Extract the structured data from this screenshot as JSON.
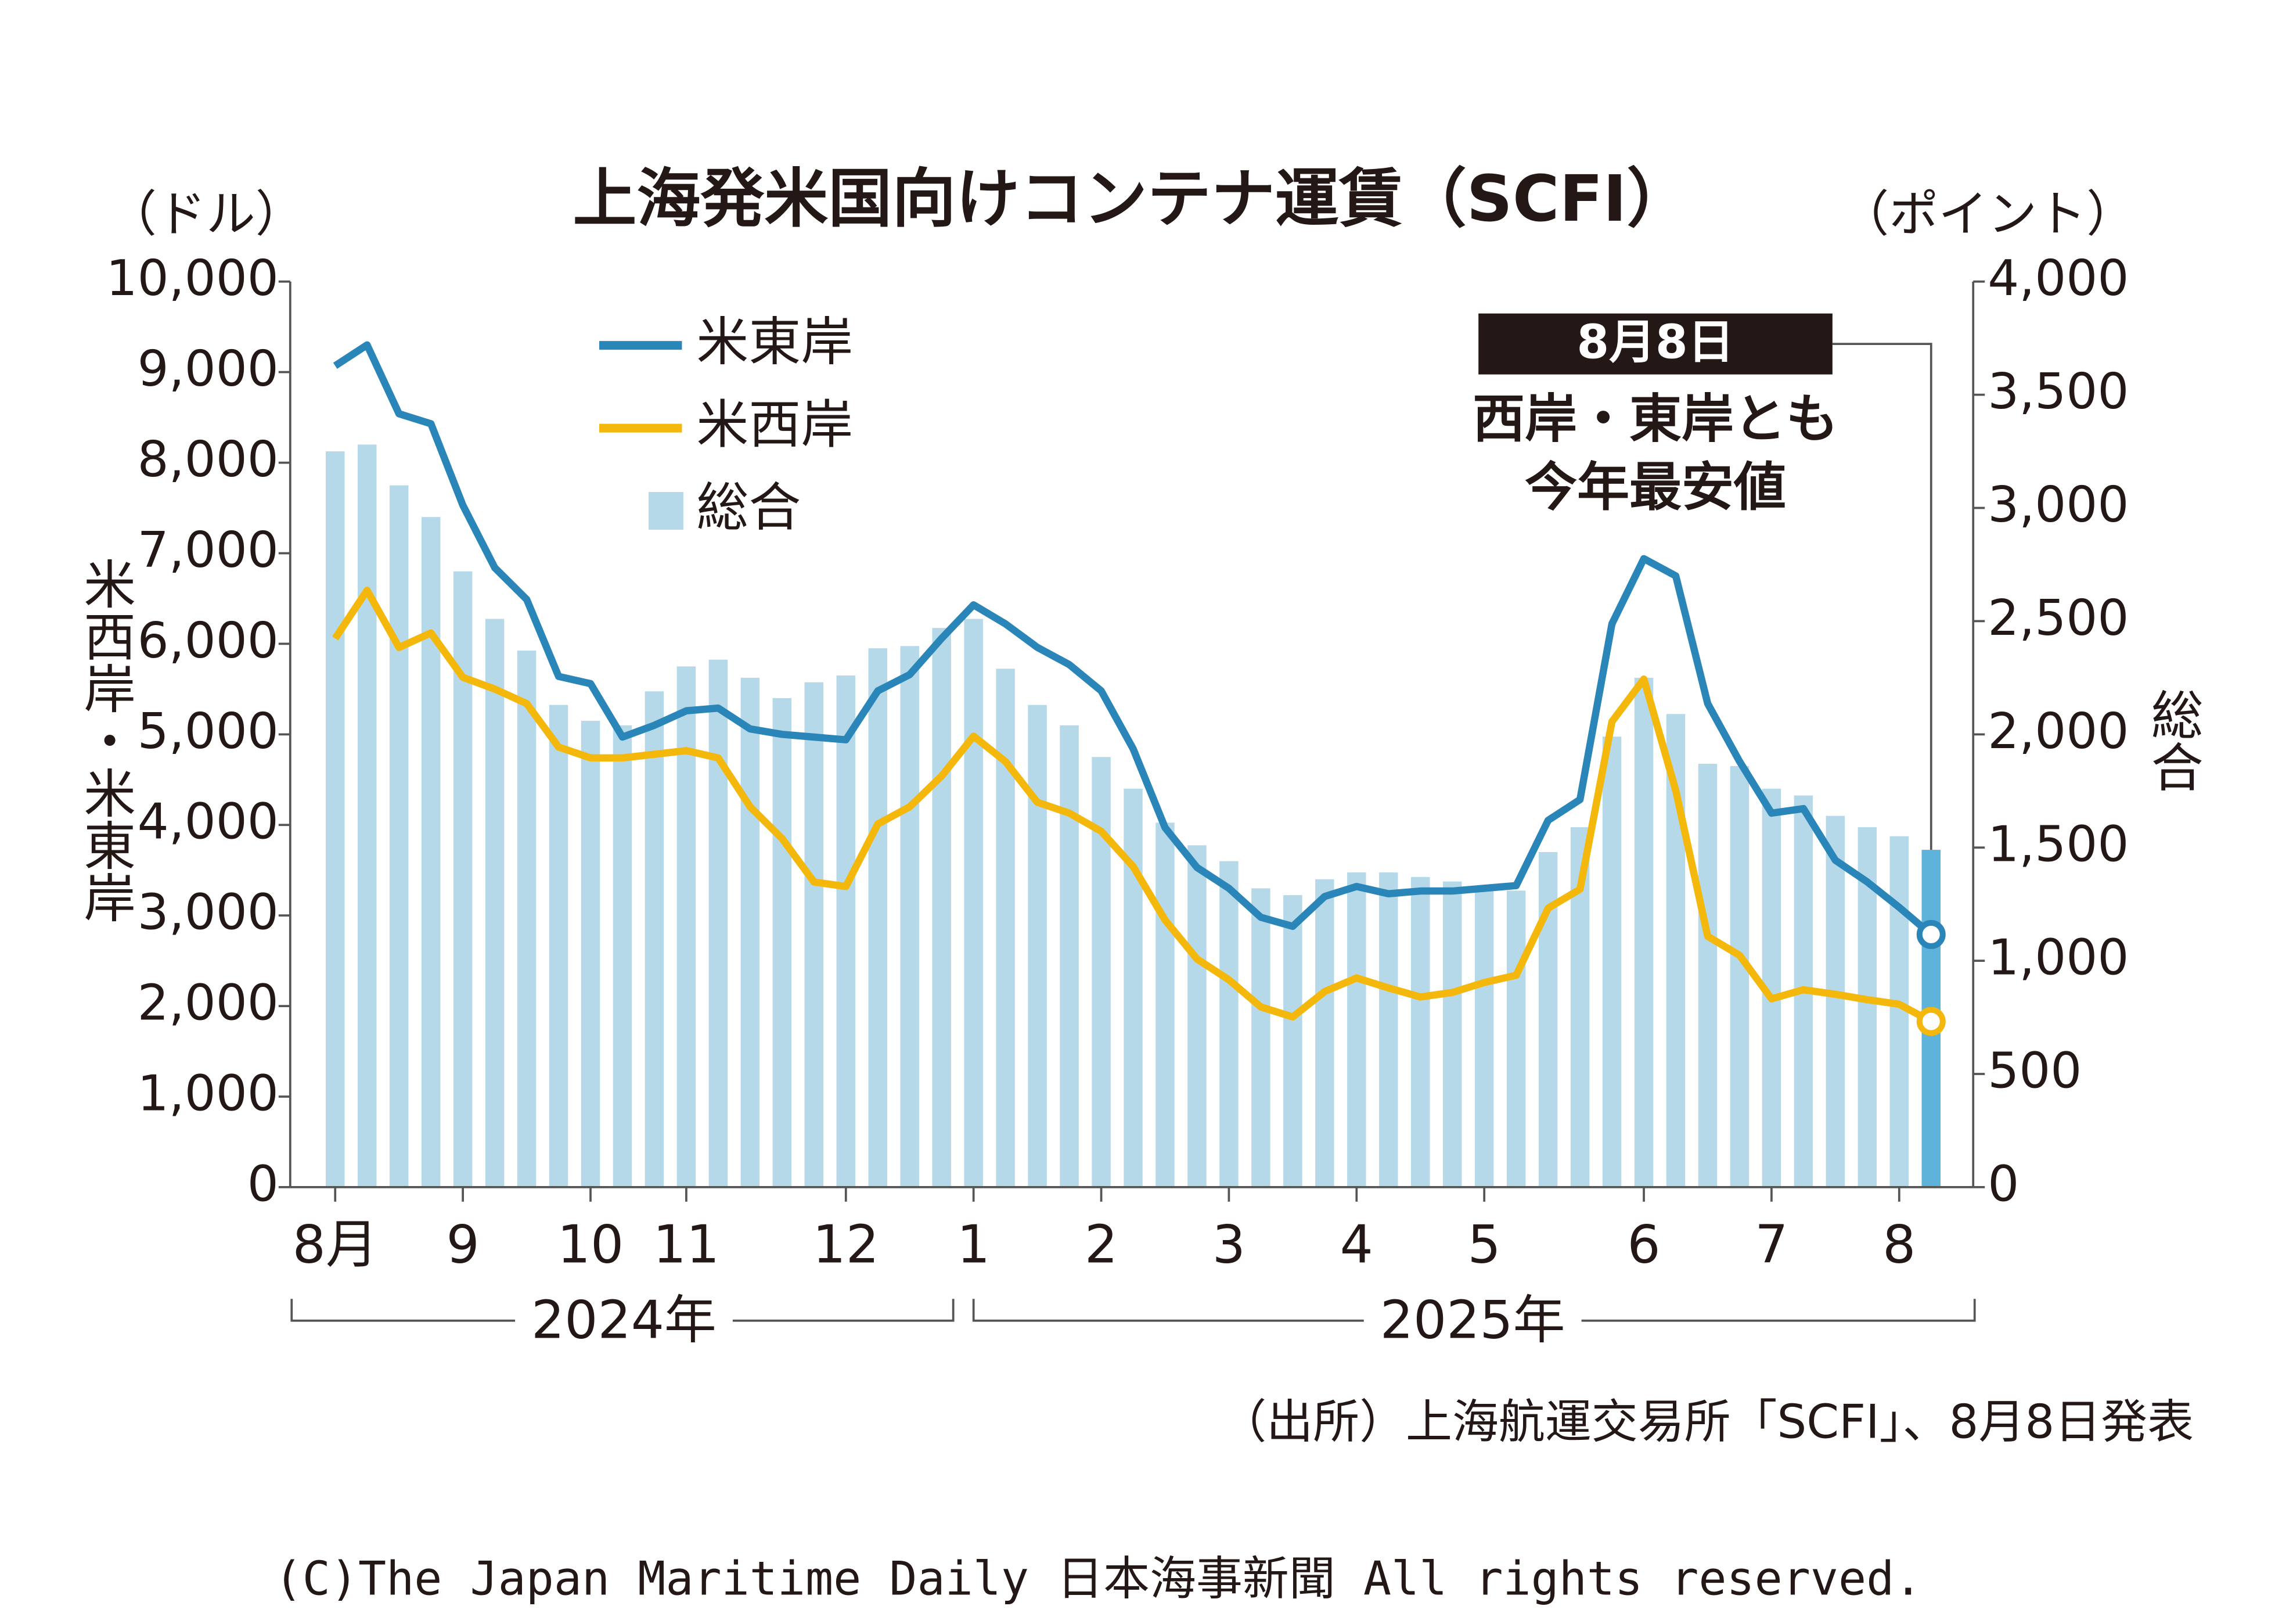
{
  "chart_data": {
    "type": "bar_line",
    "title": "上海発米国向けコンテナ運賃（SCFI）",
    "y_unit": "（ドル）",
    "y2_unit": "（ポイント）",
    "ylabel": "米西岸・米東岸",
    "y2label": "総合",
    "categories": [
      "8月",
      null,
      null,
      null,
      "9",
      null,
      null,
      null,
      "10",
      null,
      null,
      "11",
      null,
      null,
      null,
      null,
      "12",
      null,
      null,
      null,
      "1",
      null,
      null,
      null,
      "2",
      null,
      null,
      null,
      "3",
      null,
      null,
      null,
      "4",
      null,
      null,
      null,
      "5",
      null,
      null,
      null,
      null,
      "6",
      null,
      null,
      null,
      "7",
      null,
      null,
      null,
      "8",
      null
    ],
    "year_labels": [
      "2024年",
      "2025年"
    ],
    "series": [
      {
        "name": "総合",
        "kind": "bar",
        "axis": "y2",
        "color": "#b6d9ea",
        "highlight_color": "#5db3d9",
        "values": [
          3250,
          3280,
          3100,
          2960,
          2720,
          2510,
          2370,
          2130,
          2060,
          2040,
          2190,
          2300,
          2330,
          2250,
          2160,
          2230,
          2260,
          2380,
          2390,
          2470,
          2510,
          2290,
          2130,
          2040,
          1900,
          1760,
          1610,
          1510,
          1440,
          1320,
          1290,
          1360,
          1390,
          1390,
          1370,
          1350,
          1320,
          1310,
          1480,
          1590,
          1990,
          2250,
          2090,
          1870,
          1860,
          1760,
          1730,
          1640,
          1590,
          1550,
          1490
        ]
      },
      {
        "name": "米東岸",
        "kind": "line",
        "axis": "y",
        "color": "#2a86b8",
        "values": [
          9070,
          9300,
          8540,
          8430,
          7530,
          6840,
          6490,
          5640,
          5560,
          4970,
          5100,
          5260,
          5290,
          5060,
          5000,
          4970,
          4940,
          5480,
          5660,
          6060,
          6430,
          6220,
          5960,
          5770,
          5480,
          4840,
          3970,
          3530,
          3300,
          2980,
          2880,
          3210,
          3320,
          3240,
          3270,
          3270,
          3300,
          3330,
          4050,
          4280,
          6220,
          6940,
          6750,
          5340,
          4700,
          4130,
          4180,
          3610,
          3370,
          3090,
          2790
        ]
      },
      {
        "name": "米西岸",
        "kind": "line",
        "axis": "y",
        "color": "#f4b70c",
        "values": [
          6060,
          6590,
          5960,
          6120,
          5630,
          5500,
          5340,
          4860,
          4740,
          4740,
          4780,
          4820,
          4740,
          4200,
          3850,
          3370,
          3320,
          4010,
          4200,
          4540,
          4980,
          4700,
          4250,
          4130,
          3930,
          3540,
          2950,
          2520,
          2290,
          1990,
          1880,
          2160,
          2310,
          2200,
          2100,
          2150,
          2260,
          2340,
          3080,
          3290,
          5140,
          5610,
          4380,
          2770,
          2560,
          2080,
          2180,
          2130,
          2070,
          2020,
          1830
        ]
      }
    ],
    "ylim": [
      0,
      10000
    ],
    "yticks": [
      0,
      {
        "value": 1000,
        "label": "1,000"
      },
      {
        "value": 2000,
        "label": "2,000"
      },
      {
        "value": 3000,
        "label": "3,000"
      },
      {
        "value": 4000,
        "label": "4,000"
      },
      {
        "value": 5000,
        "label": "5,000"
      },
      {
        "value": 6000,
        "label": "6,000"
      },
      {
        "value": 7000,
        "label": "7,000"
      },
      {
        "value": 8000,
        "label": "8,000"
      },
      {
        "value": 9000,
        "label": "9,000"
      },
      {
        "value": 10000,
        "label": "10,000"
      }
    ],
    "y2lim": [
      0,
      4000
    ],
    "y2ticks": [
      0,
      500,
      {
        "value": 1000,
        "label": "1,000"
      },
      {
        "value": 1500,
        "label": "1,500"
      },
      {
        "value": 2000,
        "label": "2,000"
      },
      {
        "value": 2500,
        "label": "2,500"
      },
      {
        "value": 3000,
        "label": "3,000"
      },
      {
        "value": 3500,
        "label": "3,500"
      },
      {
        "value": 4000,
        "label": "4,000"
      }
    ],
    "annotation": {
      "date": "8月8日",
      "lines": [
        "西岸・東岸とも",
        "今年最安値"
      ]
    },
    "source": "（出所）上海航運交易所「SCFI」、8月8日発表",
    "copyright": "(C)The Japan Maritime Daily 日本海事新聞 All rights reserved."
  }
}
